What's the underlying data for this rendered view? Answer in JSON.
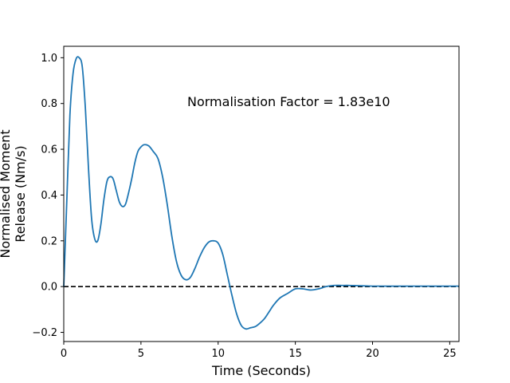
{
  "chart_data": {
    "type": "line",
    "title": "",
    "xlabel": "Time (Seconds)",
    "ylabel_lines": [
      "Normalised Moment",
      "Release (Nm/s)"
    ],
    "xlim": [
      0,
      25.6
    ],
    "ylim": [
      -0.24,
      1.05
    ],
    "xticks": [
      0,
      5,
      10,
      15,
      20,
      25
    ],
    "yticks": [
      -0.2,
      0.0,
      0.2,
      0.4,
      0.6,
      0.8,
      1.0
    ],
    "ytick_labels": [
      "−0.2",
      "0.0",
      "0.2",
      "0.4",
      "0.6",
      "0.8",
      "1.0"
    ],
    "grid": false,
    "annotation": {
      "text": "Normalisation Factor = 1.83e10",
      "x": 8.0,
      "y": 0.81
    },
    "reference_line": {
      "y": 0.0,
      "style": "dashed",
      "color": "#000000"
    },
    "series": [
      {
        "color": "#1f77b4",
        "x": [
          0,
          0.2,
          0.4,
          0.6,
          0.8,
          1.0,
          1.2,
          1.4,
          1.6,
          1.8,
          2.0,
          2.2,
          2.4,
          2.6,
          2.8,
          3.0,
          3.2,
          3.4,
          3.6,
          3.8,
          4.0,
          4.2,
          4.4,
          4.6,
          4.8,
          5.0,
          5.2,
          5.5,
          5.8,
          6.1,
          6.4,
          6.7,
          7.0,
          7.3,
          7.6,
          7.9,
          8.2,
          8.5,
          8.8,
          9.1,
          9.4,
          9.7,
          10.0,
          10.3,
          10.6,
          10.9,
          11.2,
          11.5,
          11.8,
          12.1,
          12.4,
          12.7,
          13.0,
          13.3,
          13.6,
          14.0,
          14.5,
          15.0,
          15.5,
          16.0,
          16.5,
          17.0,
          17.5,
          18.0,
          18.5,
          19.0,
          19.5,
          20.0,
          20.5,
          21.0,
          21.5,
          22.0,
          22.5,
          23.0,
          23.5,
          24.0,
          24.5,
          25.0,
          25.6
        ],
        "y": [
          0.0,
          0.38,
          0.75,
          0.93,
          0.995,
          1.0,
          0.96,
          0.78,
          0.52,
          0.3,
          0.21,
          0.2,
          0.27,
          0.38,
          0.46,
          0.48,
          0.47,
          0.42,
          0.37,
          0.35,
          0.36,
          0.41,
          0.47,
          0.54,
          0.59,
          0.61,
          0.62,
          0.615,
          0.59,
          0.56,
          0.48,
          0.36,
          0.22,
          0.11,
          0.05,
          0.03,
          0.04,
          0.08,
          0.13,
          0.17,
          0.195,
          0.2,
          0.19,
          0.14,
          0.05,
          -0.04,
          -0.12,
          -0.17,
          -0.185,
          -0.18,
          -0.175,
          -0.16,
          -0.14,
          -0.11,
          -0.08,
          -0.05,
          -0.03,
          -0.01,
          -0.01,
          -0.015,
          -0.01,
          0.0,
          0.005,
          0.005,
          0.005,
          0.004,
          0.003,
          0.002,
          0.002,
          0.002,
          0.002,
          0.002,
          0.002,
          0.002,
          0.002,
          0.002,
          0.002,
          0.002,
          0.002
        ]
      }
    ]
  }
}
